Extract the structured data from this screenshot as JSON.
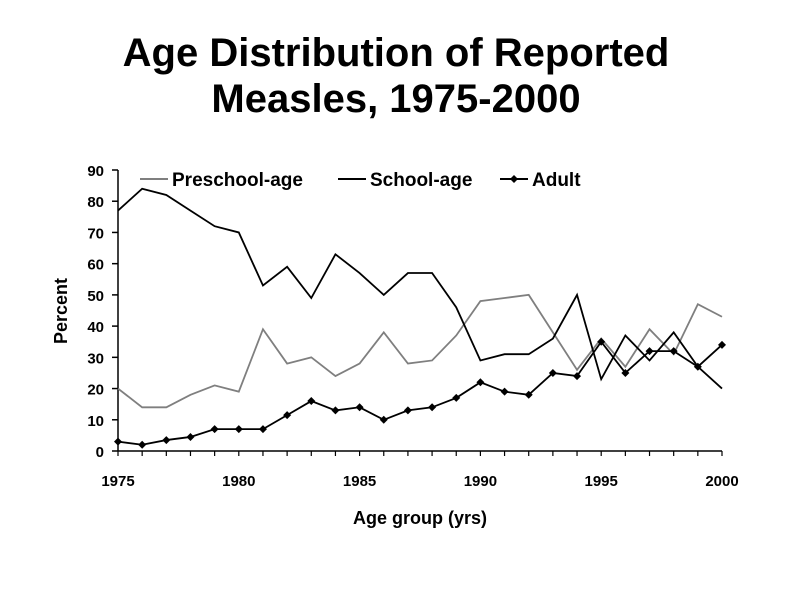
{
  "chart_data": {
    "type": "line",
    "title_lines": [
      "Age Distribution of Reported",
      "Measles, 1975-2000"
    ],
    "xlabel": "Age group (yrs)",
    "ylabel": "Percent",
    "xlim": [
      1975,
      2000
    ],
    "ylim": [
      0,
      90
    ],
    "x_ticks": [
      "1975",
      "1980",
      "1985",
      "1990",
      "1995",
      "2000"
    ],
    "y_ticks": [
      "0",
      "10",
      "20",
      "30",
      "40",
      "50",
      "60",
      "70",
      "80",
      "90"
    ],
    "legend_position": "top",
    "x": [
      1975,
      1976,
      1977,
      1978,
      1979,
      1980,
      1981,
      1982,
      1983,
      1984,
      1985,
      1986,
      1987,
      1988,
      1989,
      1990,
      1991,
      1992,
      1993,
      1994,
      1995,
      1996,
      1997,
      1998,
      1999,
      2000
    ],
    "series": [
      {
        "name": "Preschool-age",
        "color": "#7f7f7f",
        "marker": "none",
        "values": [
          20,
          14,
          14,
          18,
          21,
          19,
          39,
          28,
          30,
          24,
          28,
          38,
          28,
          29,
          37,
          48,
          49,
          50,
          38,
          26,
          36,
          27,
          39,
          31,
          47,
          43
        ]
      },
      {
        "name": "School-age",
        "color": "#000000",
        "marker": "none",
        "values": [
          77,
          84,
          82,
          77,
          72,
          70,
          53,
          59,
          49,
          63,
          57,
          50,
          57,
          57,
          46,
          29,
          31,
          31,
          36,
          50,
          23,
          37,
          29,
          38,
          27,
          20
        ]
      },
      {
        "name": "Adult",
        "color": "#000000",
        "marker": "diamond",
        "values": [
          3,
          2,
          3.5,
          4.5,
          7,
          7,
          7,
          11.5,
          16,
          13,
          14,
          10,
          13,
          14,
          17,
          22,
          19,
          18,
          25,
          24,
          35,
          25,
          32,
          32,
          27,
          34
        ]
      }
    ]
  }
}
